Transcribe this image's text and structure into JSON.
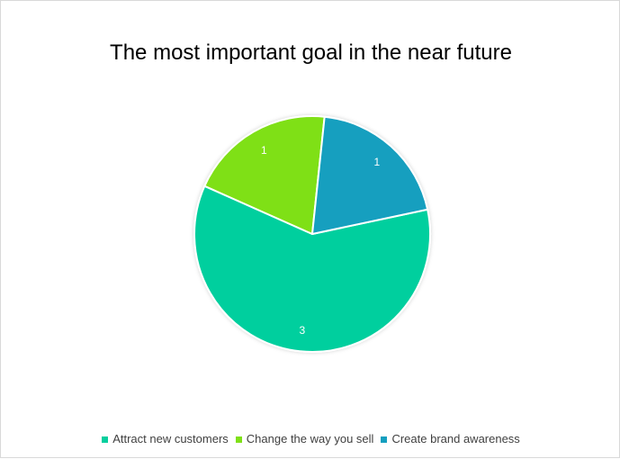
{
  "chart_data": {
    "type": "pie",
    "title": "The most important goal in the near future",
    "categories": [
      "Attract new customers",
      "Change the way you sell",
      "Create brand awareness"
    ],
    "values": [
      3,
      1,
      1
    ],
    "data_labels": [
      "3",
      "1",
      "1"
    ],
    "colors": [
      "#05cf9e",
      "#7fe018",
      "#149fbf"
    ],
    "legend_position": "bottom"
  }
}
